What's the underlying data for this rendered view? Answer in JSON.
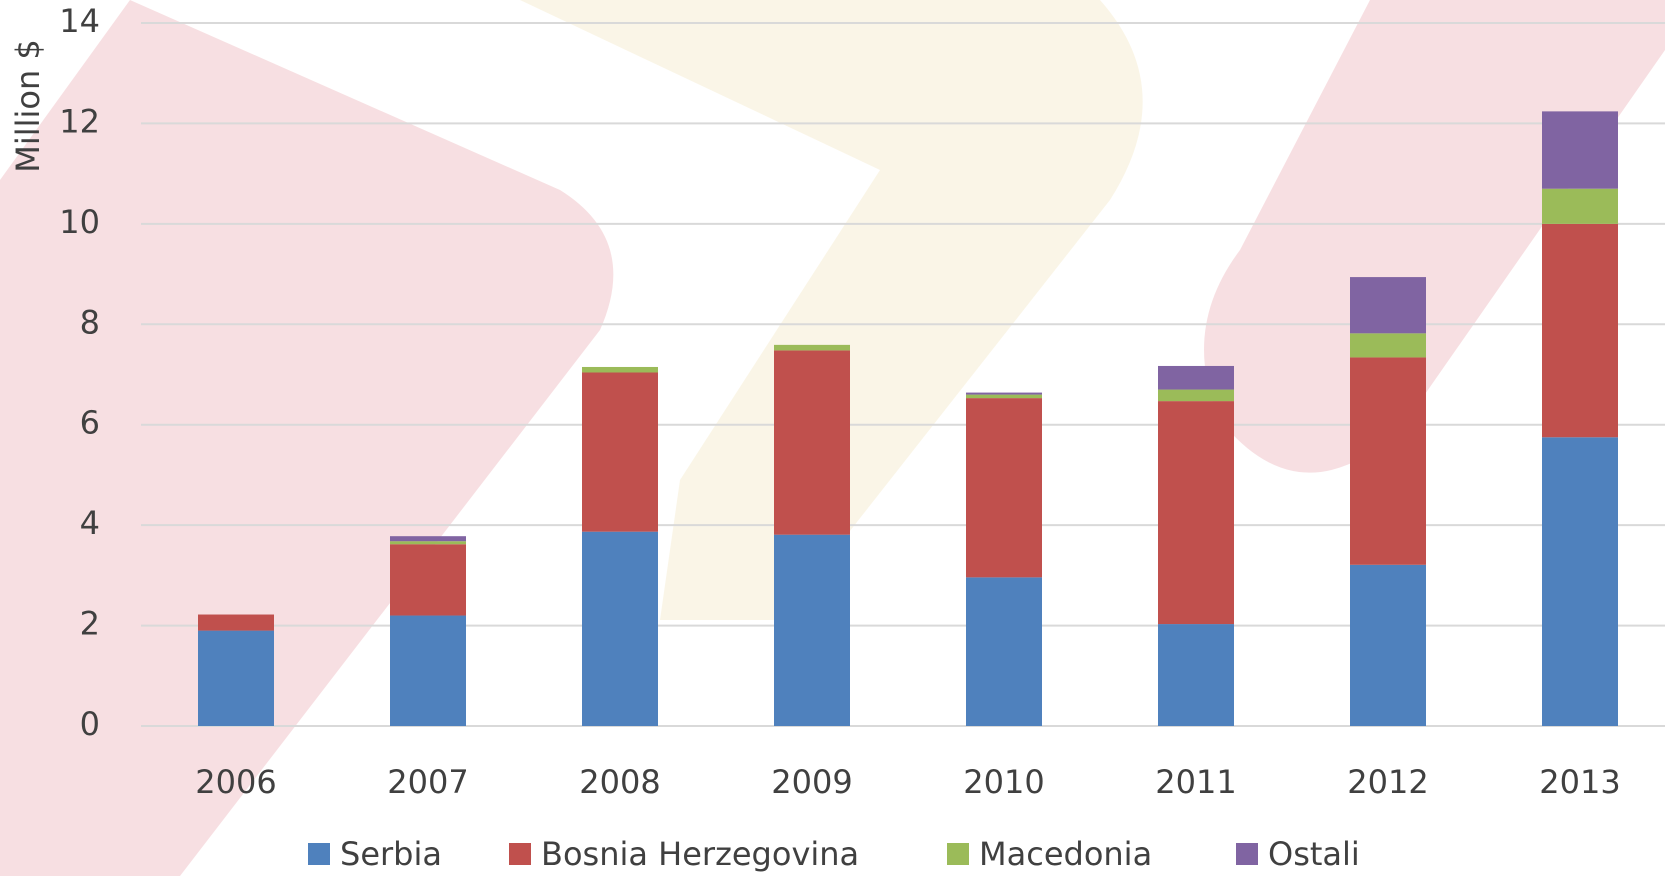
{
  "chart_data": {
    "type": "stacked_bar",
    "y_label": "Million $",
    "categories": [
      "2006",
      "2007",
      "2008",
      "2009",
      "2010",
      "2011",
      "2012",
      "2013"
    ],
    "series": [
      {
        "name": "Serbia",
        "color": "#4f81bd",
        "values": [
          1.9,
          2.2,
          3.87,
          3.81,
          2.96,
          2.03,
          3.21,
          5.75
        ]
      },
      {
        "name": "Bosnia Herzegovina",
        "color": "#c0504d",
        "values": [
          0.32,
          1.42,
          3.17,
          3.67,
          3.57,
          4.44,
          4.13,
          4.25
        ]
      },
      {
        "name": "Macedonia",
        "color": "#9bbb59",
        "values": [
          0,
          0.06,
          0.11,
          0.11,
          0.07,
          0.23,
          0.48,
          0.7
        ]
      },
      {
        "name": "Ostali",
        "color": "#8064a2",
        "values": [
          0,
          0.1,
          0,
          0,
          0.04,
          0.47,
          1.12,
          1.54
        ]
      }
    ],
    "ylim": [
      0,
      14
    ],
    "yticks": [
      0,
      2,
      4,
      6,
      8,
      10,
      12,
      14
    ],
    "grid": true,
    "legend": "bottom"
  }
}
